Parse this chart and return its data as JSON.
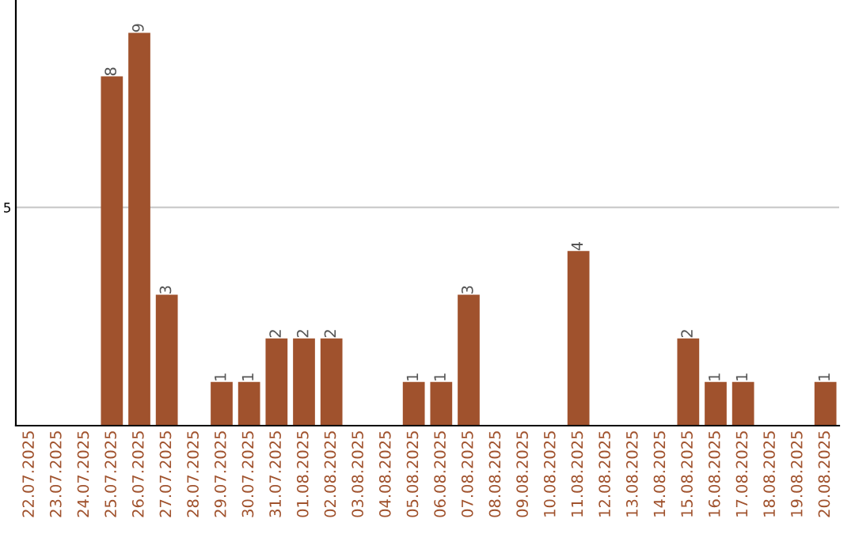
{
  "chart_data": {
    "type": "bar",
    "categories": [
      "22.07.2025",
      "23.07.2025",
      "24.07.2025",
      "25.07.2025",
      "26.07.2025",
      "27.07.2025",
      "28.07.2025",
      "29.07.2025",
      "30.07.2025",
      "31.07.2025",
      "01.08.2025",
      "02.08.2025",
      "03.08.2025",
      "04.08.2025",
      "05.08.2025",
      "06.08.2025",
      "07.08.2025",
      "08.08.2025",
      "09.08.2025",
      "10.08.2025",
      "11.08.2025",
      "12.08.2025",
      "13.08.2025",
      "14.08.2025",
      "15.08.2025",
      "16.08.2025",
      "17.08.2025",
      "18.08.2025",
      "19.08.2025",
      "20.08.2025"
    ],
    "values": [
      0,
      0,
      0,
      8,
      9,
      3,
      0,
      1,
      1,
      2,
      2,
      2,
      0,
      0,
      1,
      1,
      3,
      0,
      0,
      0,
      4,
      0,
      0,
      0,
      2,
      1,
      1,
      0,
      0,
      1
    ],
    "value_labels": [
      null,
      null,
      null,
      "8",
      "9",
      "3",
      null,
      "1",
      "1",
      "2",
      "2",
      "2",
      null,
      null,
      "1",
      "1",
      "3",
      null,
      null,
      null,
      "4",
      null,
      null,
      null,
      "2",
      "1",
      "1",
      null,
      null,
      "1"
    ],
    "color": "#a0522d",
    "ylim": [
      0,
      9.75
    ],
    "yticks": [
      5
    ],
    "grid": "y"
  }
}
